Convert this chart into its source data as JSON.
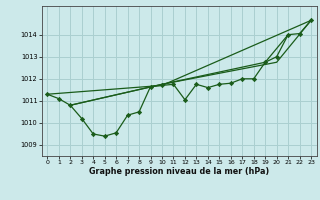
{
  "xlabel": "Graphe pression niveau de la mer (hPa)",
  "xlim": [
    -0.5,
    23.5
  ],
  "ylim": [
    1008.5,
    1015.3
  ],
  "yticks": [
    1009,
    1010,
    1011,
    1012,
    1013,
    1014
  ],
  "xticks": [
    0,
    1,
    2,
    3,
    4,
    5,
    6,
    7,
    8,
    9,
    10,
    11,
    12,
    13,
    14,
    15,
    16,
    17,
    18,
    19,
    20,
    21,
    22,
    23
  ],
  "bg_color": "#cce9ea",
  "grid_color": "#aacfd0",
  "line_color": "#1a5c1a",
  "line1": {
    "x": [
      0,
      1,
      2,
      3,
      4,
      5,
      6,
      7,
      8,
      9,
      10,
      11,
      12,
      13,
      14,
      15,
      16,
      17,
      18,
      19,
      20,
      21,
      22,
      23
    ],
    "y": [
      1011.3,
      1011.1,
      1010.8,
      1010.2,
      1009.5,
      1009.4,
      1009.55,
      1010.35,
      1010.5,
      1011.65,
      1011.7,
      1011.75,
      1011.05,
      1011.75,
      1011.6,
      1011.75,
      1011.8,
      1012.0,
      1012.0,
      1012.75,
      1013.0,
      1014.0,
      1014.05,
      1014.65
    ]
  },
  "line2": {
    "x": [
      0,
      10,
      23
    ],
    "y": [
      1011.3,
      1011.7,
      1014.65
    ]
  },
  "line3": {
    "x": [
      2,
      10,
      20,
      23
    ],
    "y": [
      1010.8,
      1011.75,
      1012.75,
      1014.65
    ]
  },
  "line4": {
    "x": [
      2,
      10,
      19,
      21
    ],
    "y": [
      1010.8,
      1011.75,
      1012.75,
      1014.0
    ]
  }
}
